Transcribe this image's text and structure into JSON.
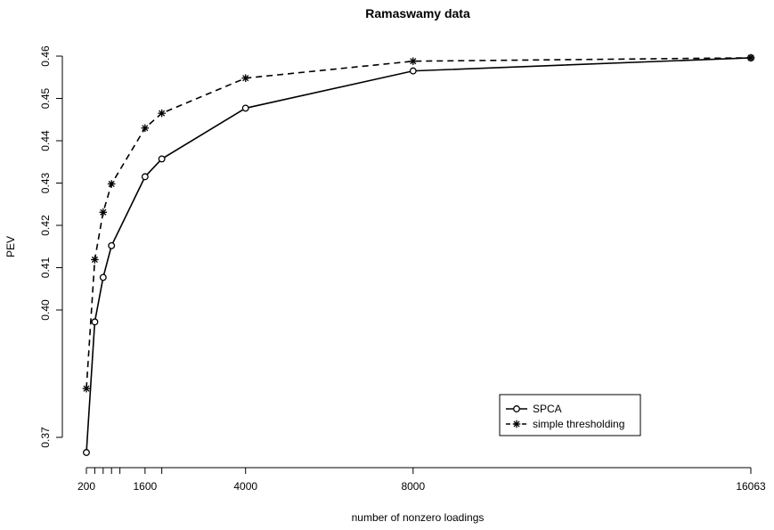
{
  "chart_data": {
    "type": "line",
    "title": "Ramaswamy data",
    "xlabel": "number of nonzero loadings",
    "ylabel": "PEV",
    "xlim": [
      200,
      16063
    ],
    "ylim": [
      0.3665,
      0.46
    ],
    "x_ticks": [
      200,
      400,
      600,
      800,
      1000,
      1600,
      2000,
      4000,
      8000,
      16063
    ],
    "x_tick_labels": [
      "200",
      "",
      "",
      "",
      "",
      "1600",
      "",
      "4000",
      "8000",
      "16063"
    ],
    "y_ticks": [
      0.37,
      0.4,
      0.41,
      0.42,
      0.43,
      0.44,
      0.45,
      0.46
    ],
    "y_tick_labels": [
      "0.37",
      "0.40",
      "0.41",
      "0.42",
      "0.43",
      "0.44",
      "0.45",
      "0.46"
    ],
    "x": [
      200,
      400,
      600,
      800,
      1600,
      2000,
      4000,
      8000,
      16063
    ],
    "series": [
      {
        "name": "SPCA",
        "values": [
          0.3665,
          0.3972,
          0.4077,
          0.4152,
          0.4315,
          0.4357,
          0.4477,
          0.4565,
          0.4596
        ],
        "line_style": "solid",
        "marker": "circle",
        "color": "#000000"
      },
      {
        "name": "simple thresholding",
        "values": [
          0.3815,
          0.4119,
          0.4231,
          0.4298,
          0.443,
          0.4465,
          0.4548,
          0.4588,
          0.4596
        ],
        "line_style": "dashed",
        "marker": "asterisk",
        "color": "#000000"
      }
    ],
    "legend_position": "bottom-right",
    "grid": false
  }
}
